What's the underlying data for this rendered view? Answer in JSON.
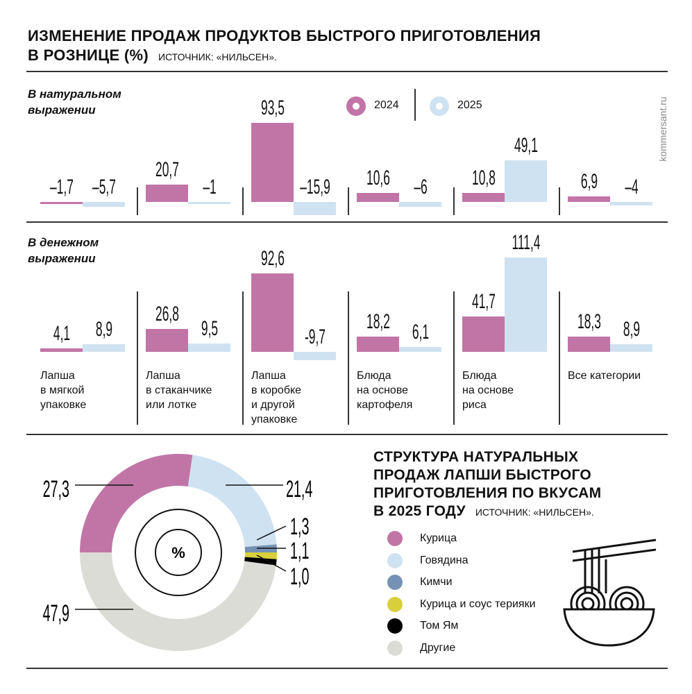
{
  "header": {
    "title_line1": "ИЗМЕНЕНИЕ ПРОДАЖ ПРОДУКТОВ БЫСТРОГО ПРИГОТОВЛЕНИЯ",
    "title_line2": "В РОЗНИЦЕ (%)",
    "source": "ИСТОЧНИК: «НИЛЬСЕН».",
    "watermark": "kommersant.ru"
  },
  "colors": {
    "2024": "#c175a6",
    "2025": "#cfe2f1"
  },
  "chart_data": [
    {
      "type": "bar",
      "title": "В натуральном выражении",
      "categories": [
        "Лапша в мягкой упаковке",
        "Лапша в стаканчике или лотке",
        "Лапша в коробке и другой упаковке",
        "Блюда на основе картофеля",
        "Блюда на основе риса",
        "Все категории"
      ],
      "series": [
        {
          "name": "2024",
          "values": [
            -1.7,
            20.7,
            93.5,
            10.6,
            10.8,
            6.9
          ],
          "labels": [
            "–1,7",
            "20,7",
            "93,5",
            "10,6",
            "10,8",
            "6,9"
          ]
        },
        {
          "name": "2025",
          "values": [
            -5.7,
            -1,
            -15.9,
            -6,
            49.1,
            -4
          ],
          "labels": [
            "–5,7",
            "–1",
            "–15,9",
            "–6",
            "49,1",
            "–4"
          ]
        }
      ]
    },
    {
      "type": "bar",
      "title": "В денежном выражении",
      "categories": [
        "Лапша в мягкой упаковке",
        "Лапша в стаканчике или лотке",
        "Лапша в коробке и другой упаковке",
        "Блюда на основе картофеля",
        "Блюда на основе риса",
        "Все категории"
      ],
      "series": [
        {
          "name": "2024",
          "values": [
            4.1,
            26.8,
            92.6,
            18.2,
            41.7,
            18.3
          ],
          "labels": [
            "4,1",
            "26,8",
            "92,6",
            "18,2",
            "41,7",
            "18,3"
          ]
        },
        {
          "name": "2025",
          "values": [
            8.9,
            9.5,
            -9.7,
            6.1,
            111.4,
            8.9
          ],
          "labels": [
            "8,9",
            "9,5",
            "-9,7",
            "6,1",
            "111,4",
            "8,9"
          ]
        }
      ]
    },
    {
      "type": "pie",
      "title": "СТРУКТУРА НАТУРАЛЬНЫХ ПРОДАЖ ЛАПШИ БЫСТРОГО ПРИГОТОВЛЕНИЯ ПО ВКУСАМ В 2025 ГОДУ",
      "source": "ИСТОЧНИК: «НИЛЬСЕН».",
      "center_label": "%",
      "slices": [
        {
          "name": "Курица",
          "value": 27.3,
          "label": "27,3",
          "color": "#c175a6"
        },
        {
          "name": "Говядина",
          "value": 21.4,
          "label": "21,4",
          "color": "#cfe2f1"
        },
        {
          "name": "Кимчи",
          "value": 1.3,
          "label": "1,3",
          "color": "#7592b4"
        },
        {
          "name": "Курица и соус терияки",
          "value": 1.1,
          "label": "1,1",
          "color": "#d8cf3a"
        },
        {
          "name": "Том Ям",
          "value": 1.0,
          "label": "1,0",
          "color": "#000000"
        },
        {
          "name": "Другие",
          "value": 47.9,
          "label": "47,9",
          "color": "#dcdcd6"
        }
      ]
    }
  ],
  "section_labels": {
    "natural_l1": "В натуральном",
    "natural_l2": "выражении",
    "money_l1": "В денежном",
    "money_l2": "выражении"
  },
  "category_lines": [
    [
      "Лапша",
      "в мягкой",
      "упаковке"
    ],
    [
      "Лапша",
      "в стаканчике",
      "или лотке"
    ],
    [
      "Лапша",
      "в коробке",
      "и другой",
      "упаковке"
    ],
    [
      "Блюда",
      "на основе",
      "картофеля"
    ],
    [
      "Блюда",
      "на основе",
      "риса"
    ],
    [
      "Все категории"
    ]
  ],
  "pie_title_lines": [
    "СТРУКТУРА НАТУРАЛЬНЫХ",
    "ПРОДАЖ ЛАПШИ БЫСТРОГО",
    "ПРИГОТОВЛЕНИЯ ПО ВКУСАМ",
    "В 2025 ГОДУ"
  ],
  "icons": {
    "noodle": "noodle-bowl-icon",
    "legend": "ring-icon"
  }
}
